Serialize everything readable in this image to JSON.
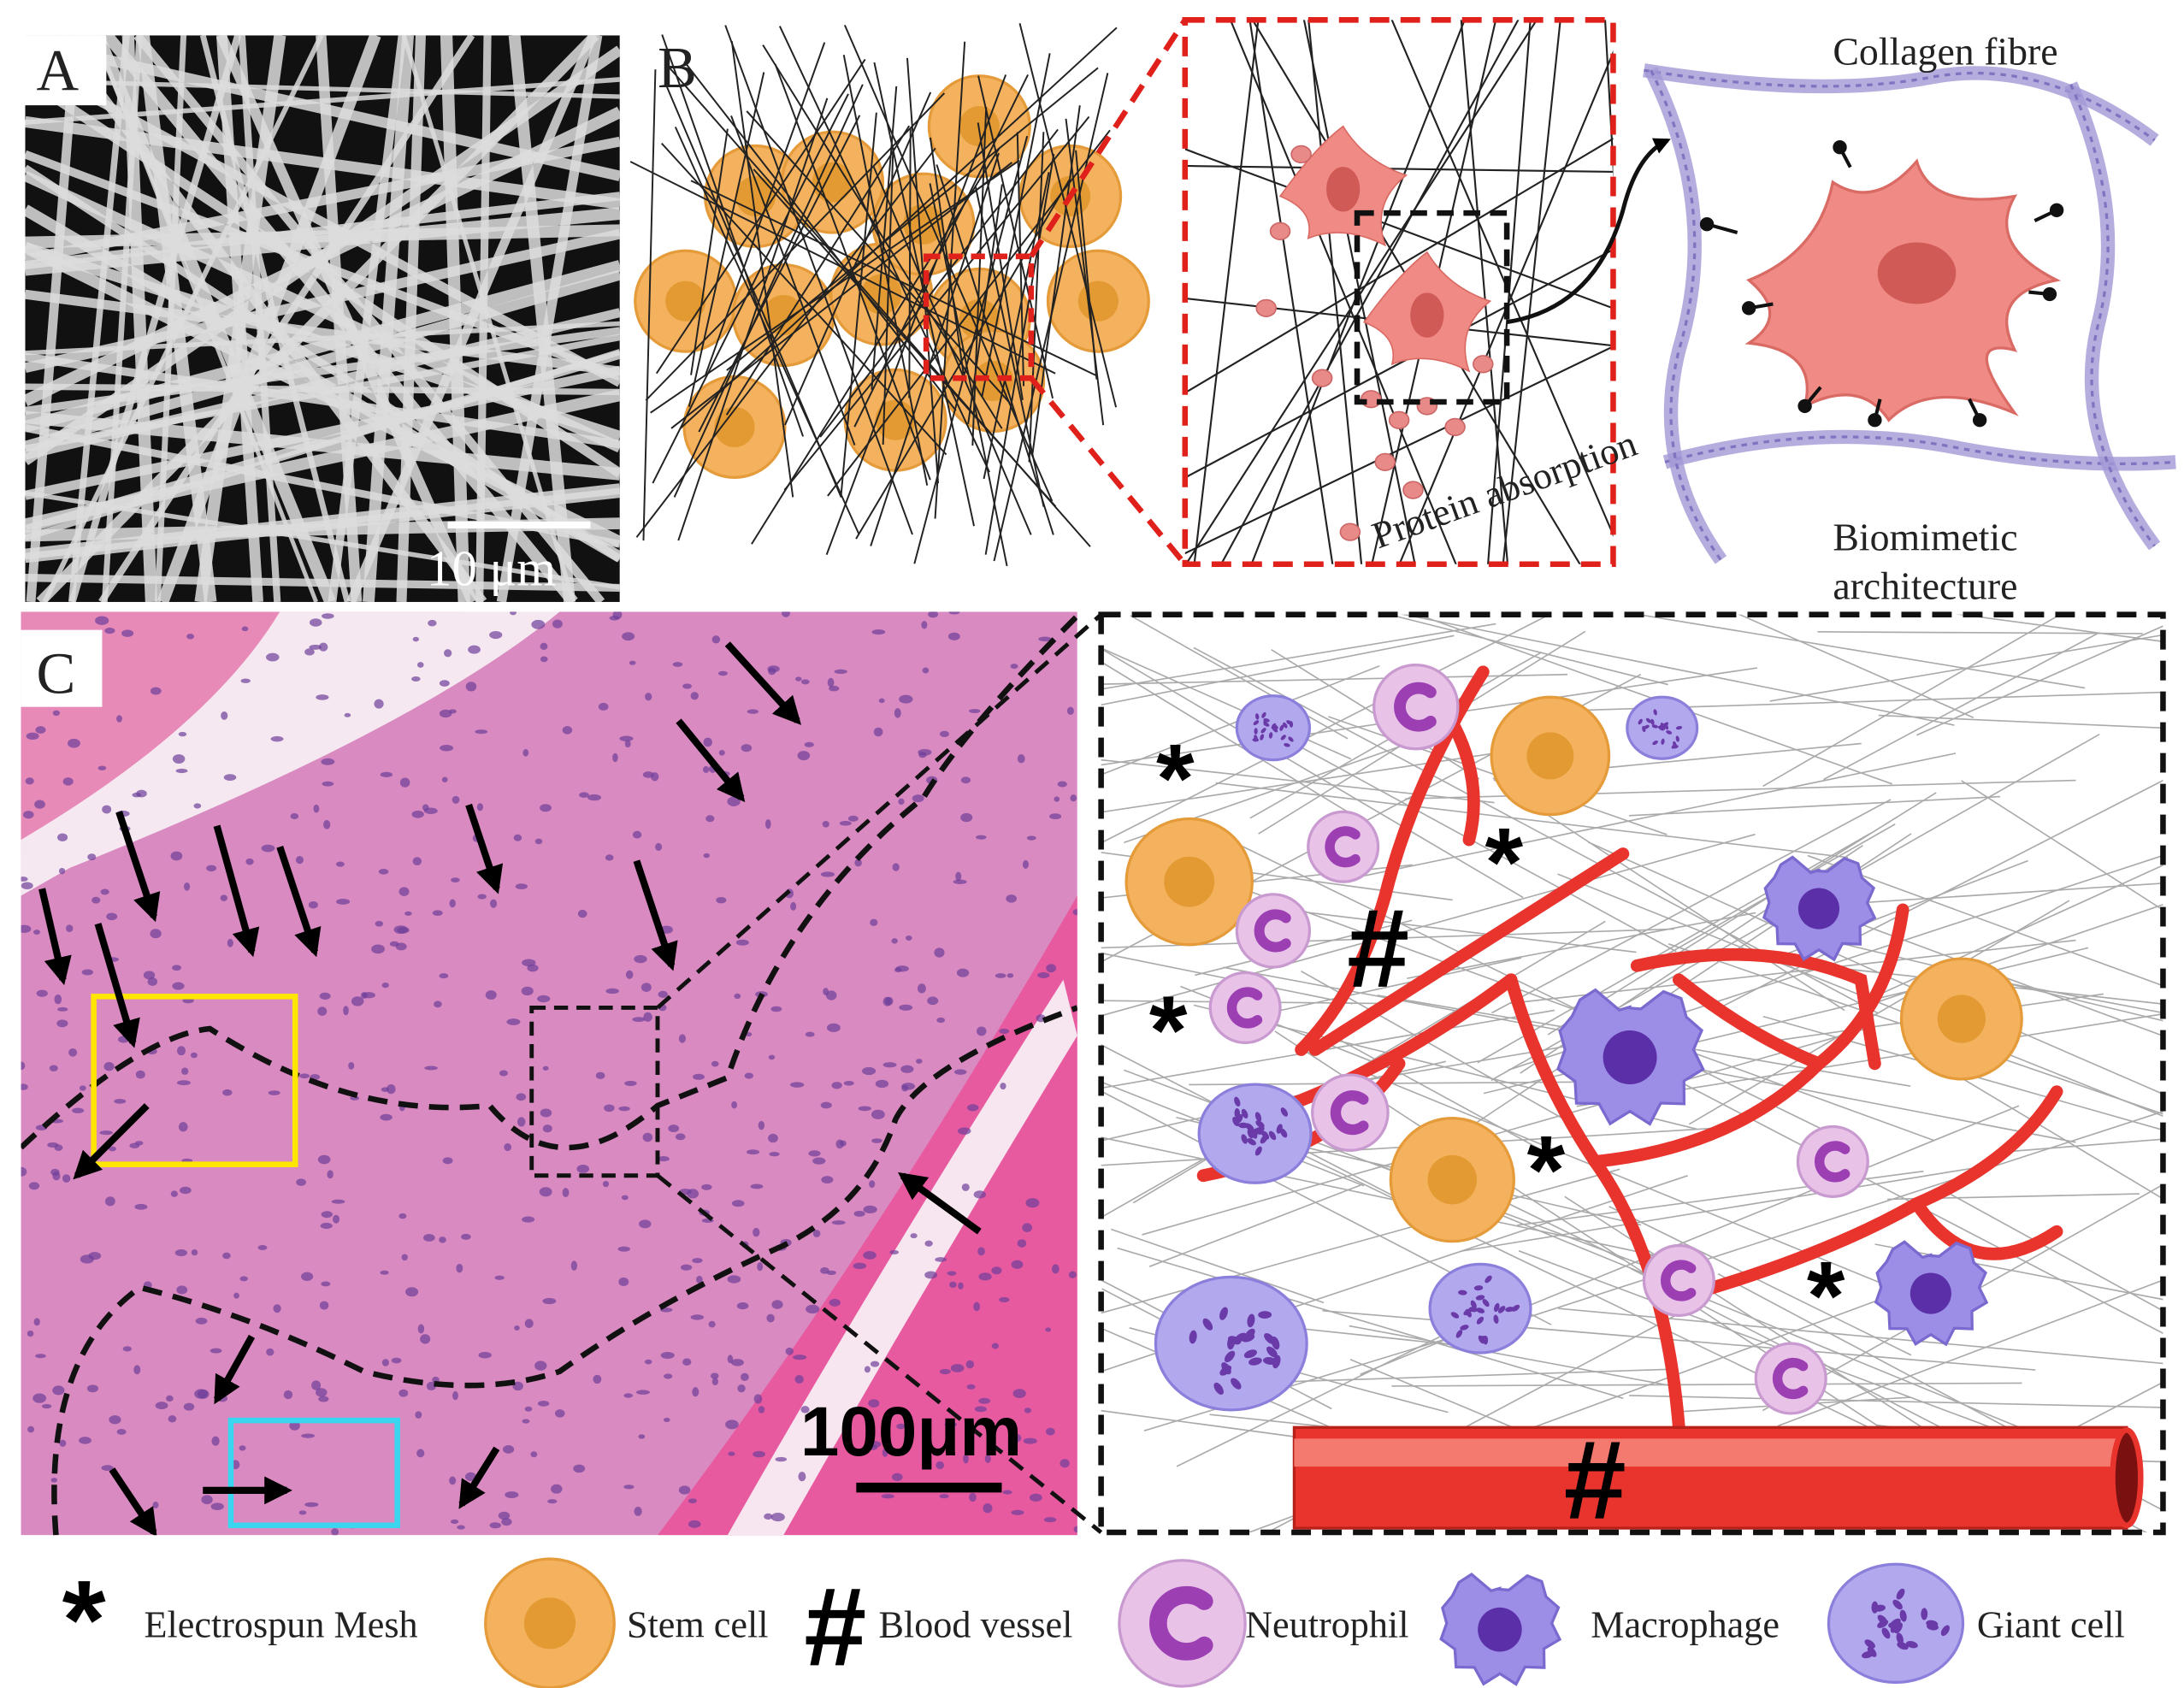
{
  "panels": {
    "a": {
      "label": "A",
      "scale_bar": "10 μm"
    },
    "b": {
      "label": "B",
      "collagen_fibre": "Collagen fibre",
      "protein_absorption": "Protein absorption",
      "biomimetic_architecture": [
        "Biomimetic",
        "architecture"
      ]
    },
    "c": {
      "label": "C",
      "scale_bar": "100μm"
    }
  },
  "legend": [
    {
      "symbol": "*",
      "label": "Electrospun Mesh"
    },
    {
      "label": "Stem cell"
    },
    {
      "symbol": "#",
      "label": "Blood vessel"
    },
    {
      "label": "Neutrophil"
    },
    {
      "label": "Macrophage"
    },
    {
      "label": "Giant cell"
    }
  ]
}
